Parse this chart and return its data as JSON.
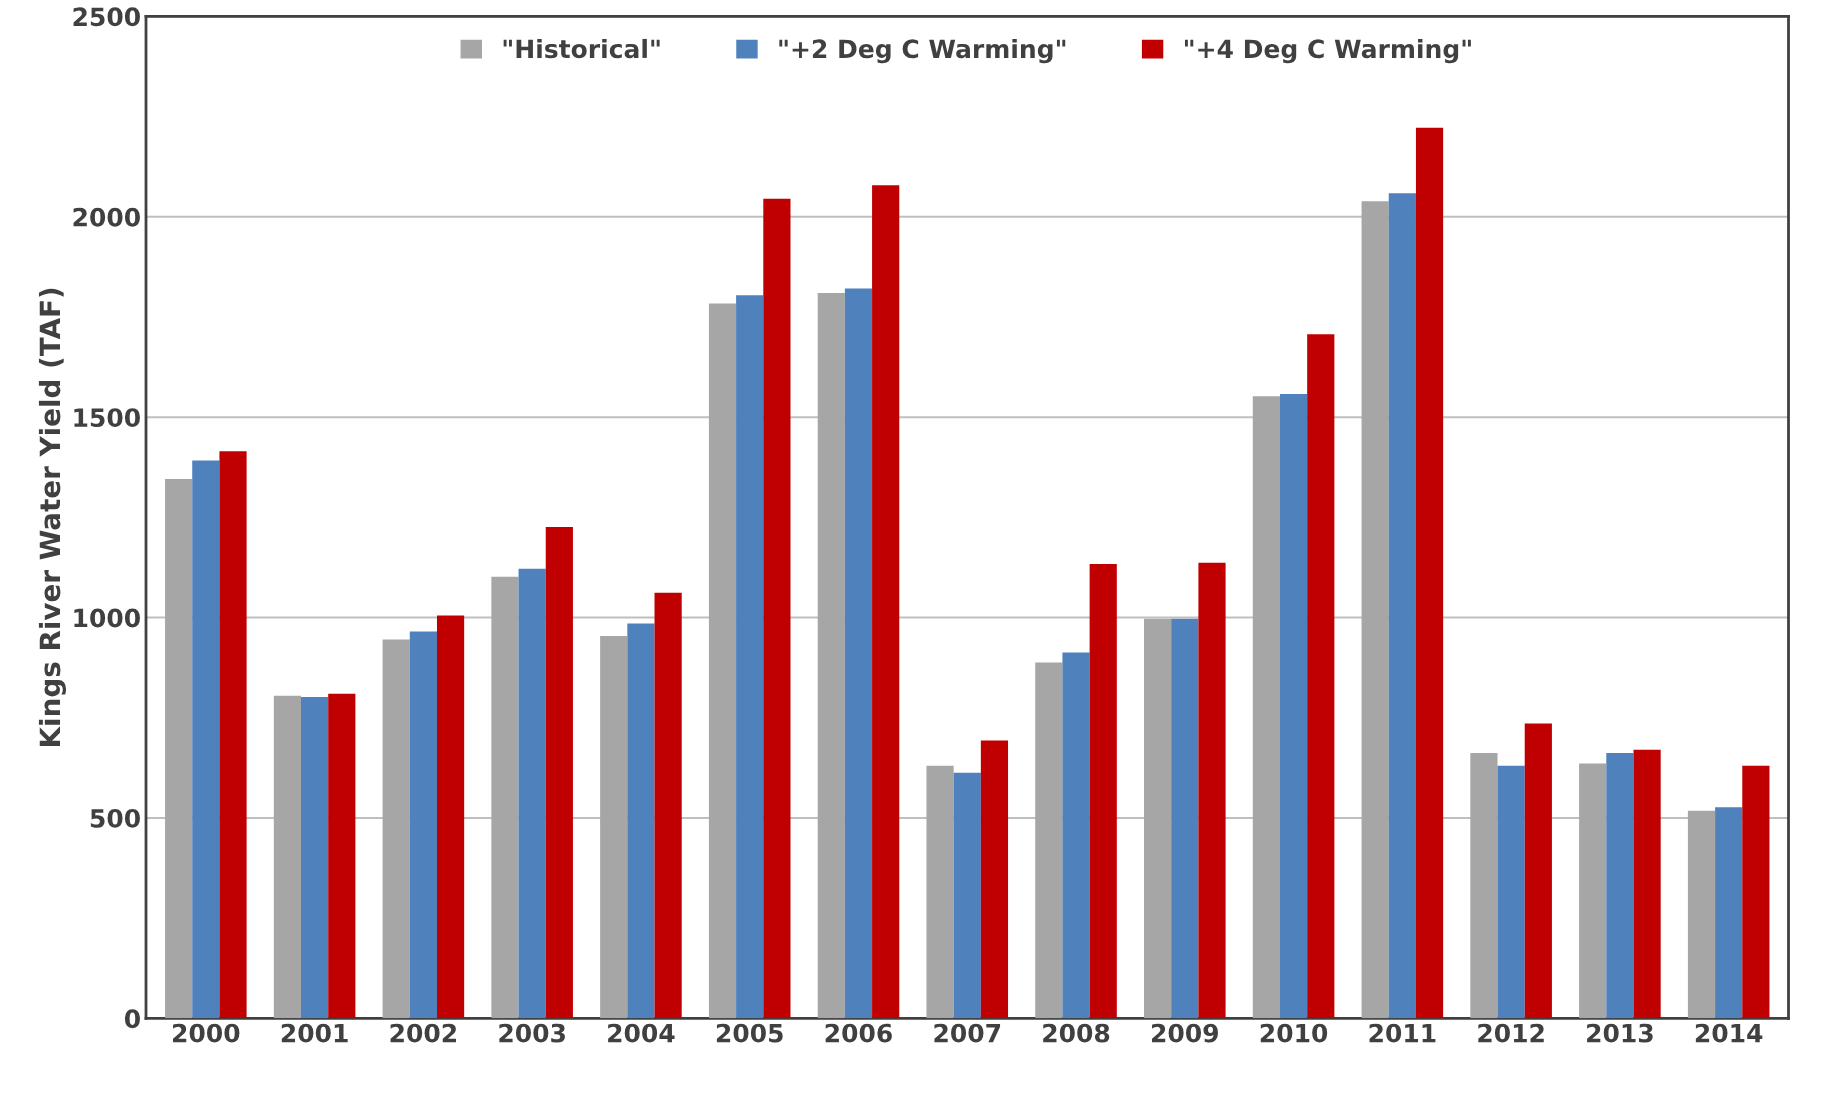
{
  "chart_data": {
    "type": "bar",
    "ylabel": "Kings River Water Yield (TAF)",
    "categories": [
      "2000",
      "2001",
      "2002",
      "2003",
      "2004",
      "2005",
      "2006",
      "2007",
      "2008",
      "2009",
      "2010",
      "2011",
      "2012",
      "2013",
      "2014"
    ],
    "series": [
      {
        "name": "\"Historical\"",
        "color": "#a6a6a6",
        "values": [
          1346,
          805,
          945,
          1102,
          954,
          1784,
          1810,
          630,
          888,
          997,
          1552,
          2039,
          662,
          636,
          518
        ]
      },
      {
        "name": "\"+2 Deg C Warming\"",
        "color": "#4f81bd",
        "values": [
          1392,
          802,
          965,
          1122,
          985,
          1804,
          1821,
          613,
          913,
          997,
          1558,
          2059,
          630,
          662,
          527
        ]
      },
      {
        "name": "\"+4 Deg C Warming\"",
        "color": "#c00000",
        "values": [
          1415,
          810,
          1005,
          1226,
          1062,
          2045,
          2079,
          693,
          1134,
          1137,
          1707,
          2222,
          736,
          670,
          630
        ]
      }
    ],
    "ylim": [
      0,
      2500
    ],
    "yticks": [
      0,
      500,
      1000,
      1500,
      2000,
      2500
    ],
    "grid": "y",
    "legend": "top"
  }
}
